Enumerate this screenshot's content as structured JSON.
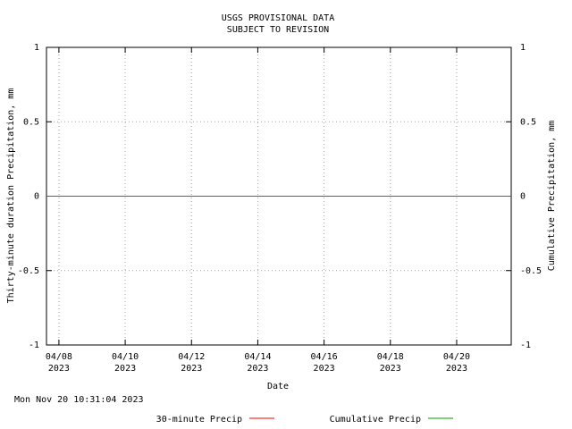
{
  "chart_data": {
    "type": "line",
    "title": "USGS PROVISIONAL DATA",
    "subtitle": "SUBJECT TO REVISION",
    "x_label": "Date",
    "y_label": "Thirty-minute duration Precipitation, mm",
    "y2_label": "Cumulative Precipitation, mm",
    "annotation": "Mon Nov 20 10:31:04 2023",
    "x": [
      "2023-04-07T15:00:00",
      "2023-04-21T15:30:00"
    ],
    "series": [
      {
        "name": "30-minute Precip",
        "color": "#ff0000",
        "values": [
          0,
          0
        ]
      },
      {
        "name": "Cumulative Precip",
        "color": "#00a000",
        "values": [
          0,
          0
        ],
        "axis": "y2"
      }
    ],
    "xlim": [
      "2023-04-07T15:00:00",
      "2023-04-21T15:30:00"
    ],
    "xticks": [
      {
        "value": "2023-04-08T00:00:00",
        "label": "04/08\n2023"
      },
      {
        "value": "2023-04-10T00:00:00",
        "label": "04/10\n2023"
      },
      {
        "value": "2023-04-12T00:00:00",
        "label": "04/12\n2023"
      },
      {
        "value": "2023-04-14T00:00:00",
        "label": "04/14\n2023"
      },
      {
        "value": "2023-04-16T00:00:00",
        "label": "04/16\n2023"
      },
      {
        "value": "2023-04-18T00:00:00",
        "label": "04/18\n2023"
      },
      {
        "value": "2023-04-20T00:00:00",
        "label": "04/20\n2023"
      }
    ],
    "ylim": [
      -1,
      1
    ],
    "yticks": [
      -1,
      -0.5,
      0,
      0.5,
      1
    ],
    "y2lim": [
      -1,
      1
    ],
    "y2ticks": [
      -1,
      -0.5,
      0,
      0.5,
      1
    ],
    "grid": true
  }
}
